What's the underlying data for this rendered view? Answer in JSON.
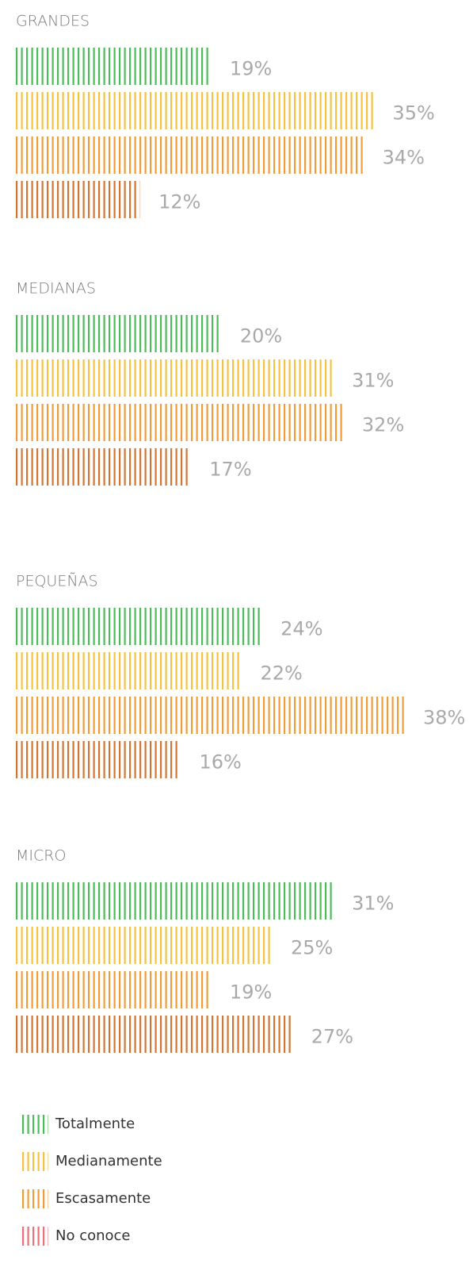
{
  "chart_data": {
    "type": "bar",
    "groups": [
      "GRANDES",
      "MEDIANAS",
      "PEQUEÑAS",
      "MICRO"
    ],
    "series": [
      {
        "name": "Totalmente",
        "color": "#4cbb5a",
        "legend_color": "#4cbb5a",
        "values": [
          19,
          20,
          24,
          31
        ],
        "value_labels": [
          "19%",
          "20%",
          "24%",
          "31%"
        ]
      },
      {
        "name": "Medianamente",
        "color": "#f5c242",
        "legend_color": "#f5c242",
        "values": [
          35,
          31,
          22,
          25
        ],
        "value_labels": [
          "35%",
          "31%",
          "22%",
          "25%"
        ]
      },
      {
        "name": "Escasamente",
        "color": "#ef9d3a",
        "legend_color": "#ef9d3a",
        "values": [
          34,
          32,
          38,
          19
        ],
        "value_labels": [
          "34%",
          "32%",
          "38%",
          "19%"
        ]
      },
      {
        "name": "No conoce",
        "color": "#d27636",
        "legend_color": "#ec6f7a",
        "values": [
          12,
          17,
          16,
          27
        ],
        "value_labels": [
          "12%",
          "17%",
          "16%",
          "27%"
        ]
      }
    ],
    "xlim": [
      0,
      44
    ]
  }
}
